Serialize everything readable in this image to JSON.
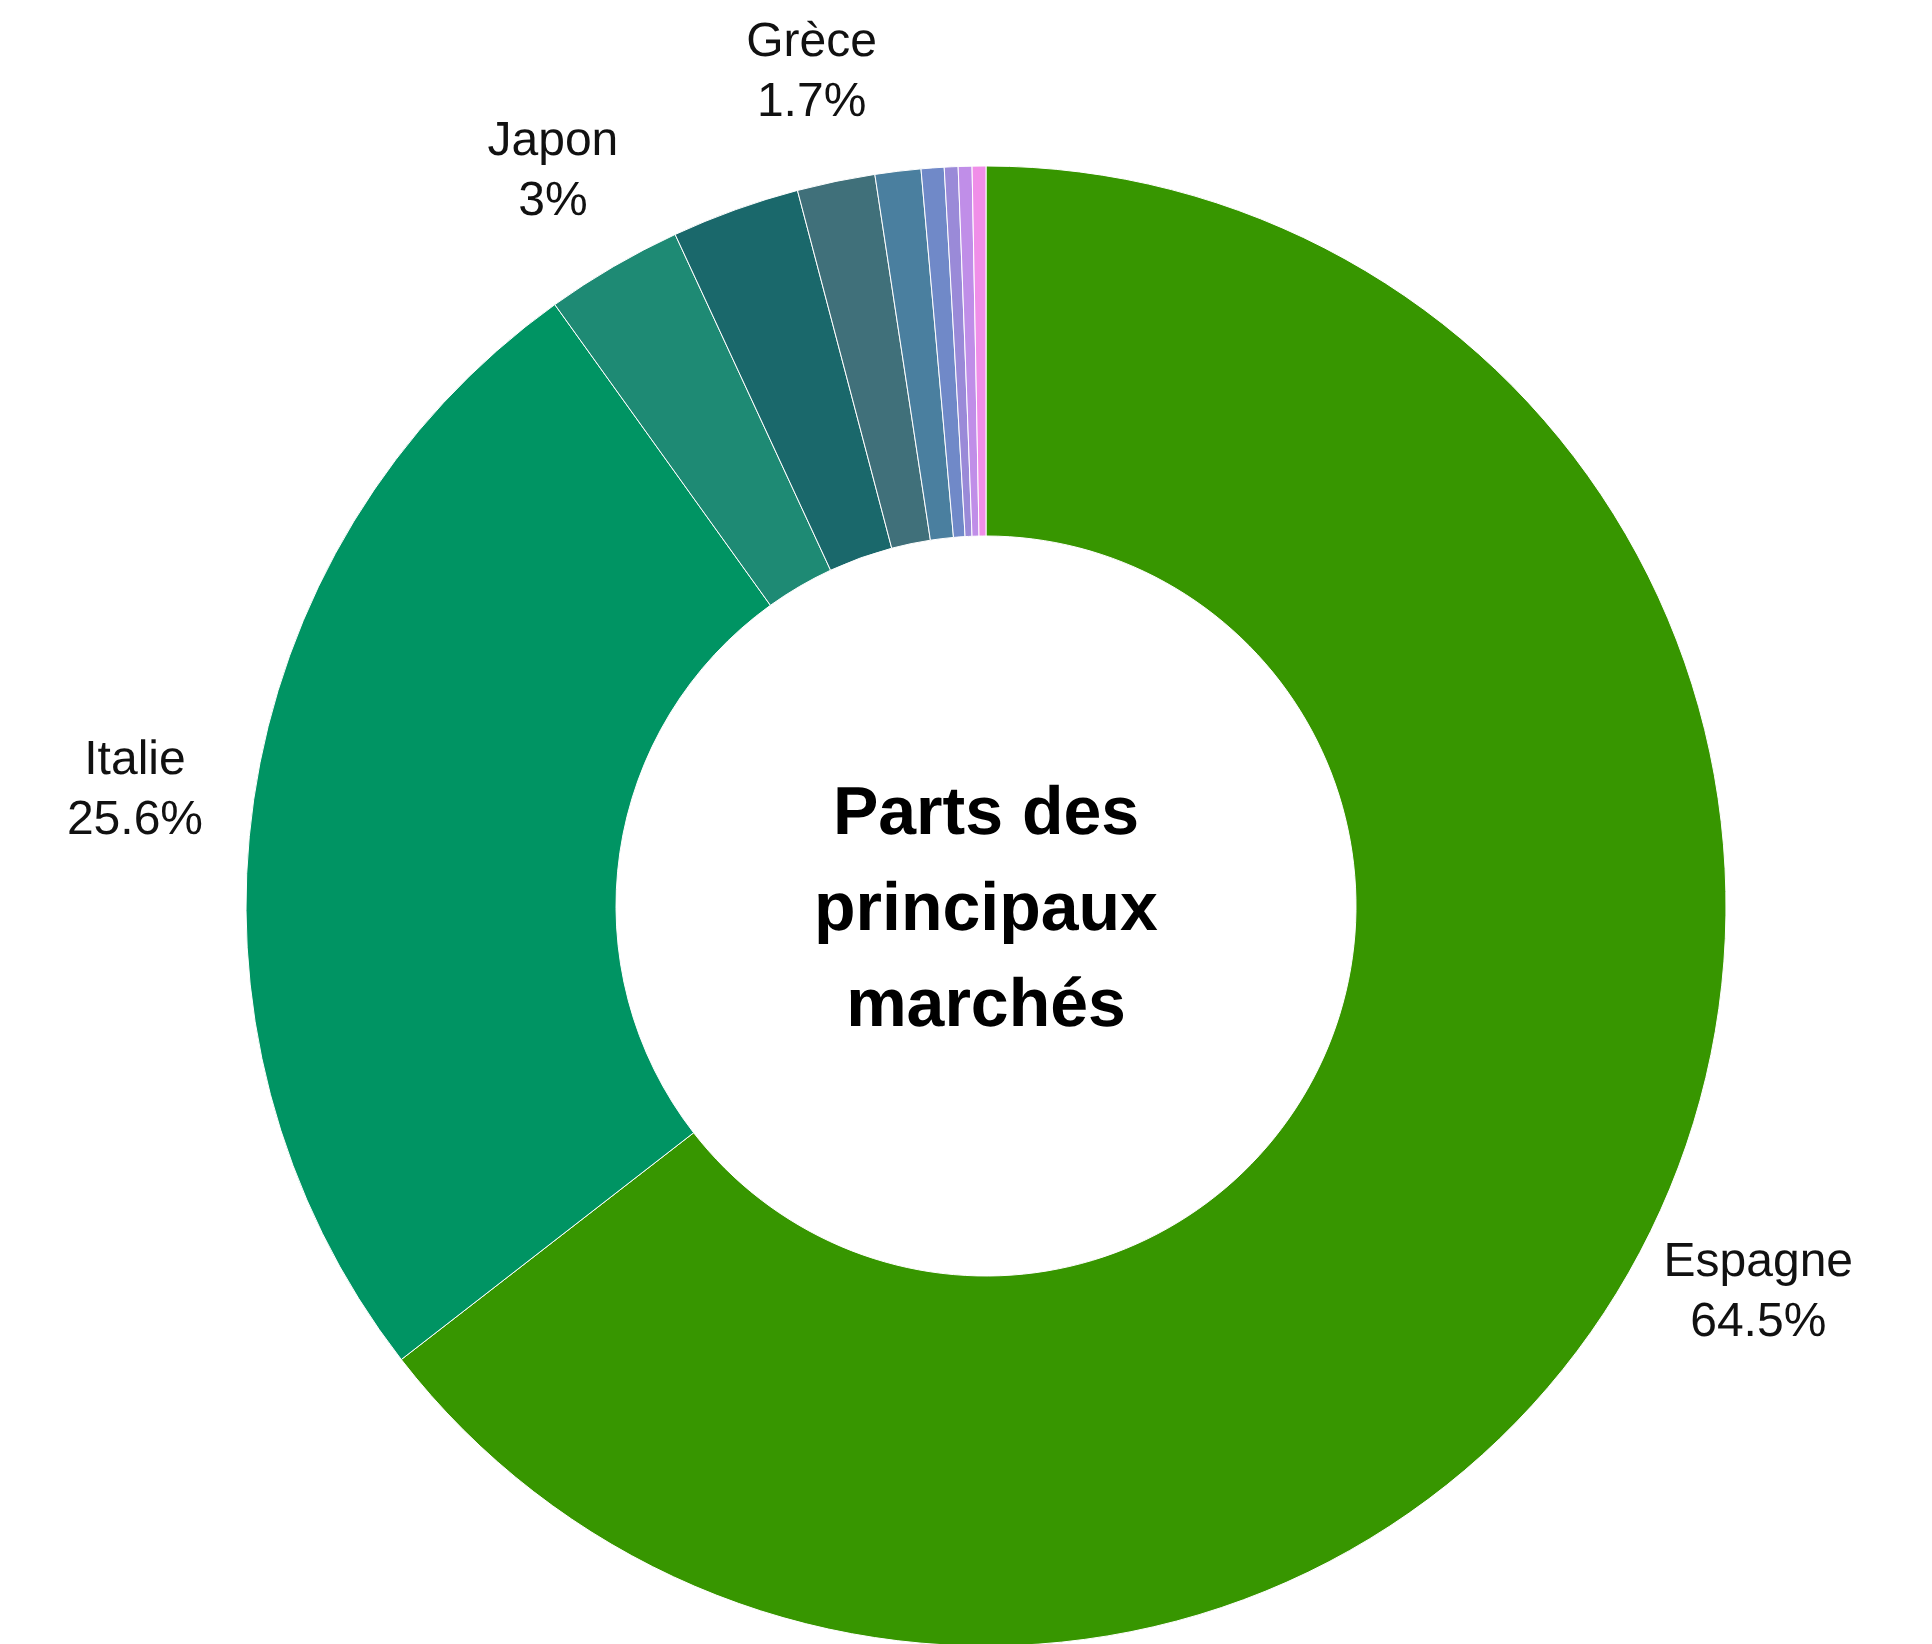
{
  "chart_data": {
    "type": "donut",
    "title": "Parts des principaux marchés",
    "categories": [
      "Espagne",
      "Italie",
      "Japon",
      null,
      "Grèce",
      null,
      null,
      null,
      null,
      null
    ],
    "values": [
      64.5,
      25.6,
      3,
      2.8,
      1.7,
      1,
      0.5,
      0.3,
      0.3,
      0.3
    ],
    "colors": [
      "#379600",
      "#009463",
      "#1e8a74",
      "#1a686b",
      "#40707a",
      "#4a7f9f",
      "#7089c8",
      "#9a8ad8",
      "#c08ee8",
      "#f08ee8"
    ],
    "value_labels": [
      "64.5%",
      "25.6%",
      "3%",
      null,
      "1.7%",
      null,
      null,
      null,
      null,
      null
    ]
  }
}
